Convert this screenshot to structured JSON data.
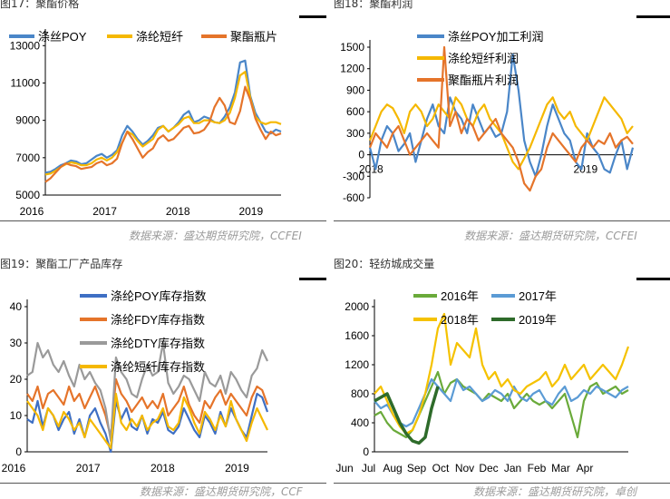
{
  "panels": [
    {
      "title": "图17：聚酯价格",
      "source": "数据来源：盛达期货研究院，CCFEI",
      "chart_data": {
        "type": "line",
        "x_ticks": [
          "2016",
          "2017",
          "2018",
          "2019"
        ],
        "y_ticks": [
          "5000",
          "7000",
          "9000",
          "11000",
          "13000"
        ],
        "ylim": [
          5000,
          13500
        ],
        "legend_position": "top",
        "series": [
          {
            "name": "涤丝POY",
            "color": "#4a86c8",
            "values": [
              6200,
              6250,
              6400,
              6600,
              6700,
              6850,
              6800,
              6650,
              6700,
              6900,
              7100,
              7200,
              7000,
              7150,
              7400,
              8200,
              8700,
              8400,
              8000,
              7700,
              7900,
              8200,
              8600,
              8700,
              8400,
              8600,
              8900,
              9300,
              9500,
              8900,
              9000,
              9200,
              9100,
              8900,
              8850,
              9200,
              9700,
              10500,
              12100,
              12200,
              10300,
              9400,
              8900,
              8400,
              8300,
              8500,
              8400
            ]
          },
          {
            "name": "涤纶短纤",
            "color": "#f5b800",
            "values": [
              6100,
              6150,
              6300,
              6500,
              6650,
              6750,
              6700,
              6600,
              6600,
              6700,
              6900,
              7000,
              6850,
              7000,
              7300,
              7800,
              8400,
              8250,
              7900,
              7600,
              7800,
              8000,
              8500,
              8700,
              8400,
              8600,
              8800,
              9100,
              9200,
              8850,
              8850,
              9000,
              9000,
              8900,
              8850,
              9000,
              9400,
              10200,
              11400,
              11600,
              10200,
              9200,
              8900,
              8800,
              8900,
              8900,
              8800
            ]
          },
          {
            "name": "聚酯瓶片",
            "color": "#e5742a",
            "values": [
              5700,
              5900,
              6200,
              6500,
              6700,
              6600,
              6550,
              6400,
              6450,
              6500,
              6700,
              6800,
              6600,
              6700,
              6950,
              7800,
              8400,
              8000,
              7500,
              7000,
              7300,
              7500,
              8000,
              8200,
              7900,
              8000,
              8300,
              8600,
              8700,
              8300,
              8350,
              8500,
              8900,
              9700,
              10200,
              9800,
              8900,
              8800,
              9500,
              10800,
              10100,
              9100,
              8500,
              8000,
              8400,
              8200,
              8300
            ]
          }
        ]
      }
    },
    {
      "title": "图18：聚酯利润",
      "source": "数据来源：盛达期货研究院，CCFEI",
      "chart_data": {
        "type": "line",
        "x_ticks": [
          "2018",
          "2019"
        ],
        "y_ticks": [
          "-600",
          "-300",
          "0",
          "300",
          "600",
          "900",
          "1200",
          "1500"
        ],
        "ylim": [
          -600,
          1500
        ],
        "legend_position": "top",
        "series": [
          {
            "name": "涤丝POY加工利润",
            "color": "#4a86c8",
            "values": [
              100,
              -200,
              200,
              400,
              300,
              50,
              150,
              300,
              -100,
              200,
              500,
              700,
              400,
              300,
              800,
              600,
              500,
              300,
              700,
              500,
              300,
              400,
              250,
              300,
              600,
              1400,
              900,
              200,
              -100,
              -300,
              0,
              400,
              700,
              500,
              300,
              200,
              -100,
              -200,
              300,
              100,
              0,
              -200,
              -250,
              0,
              200,
              -200,
              100
            ]
          },
          {
            "name": "涤纶短纤利润",
            "color": "#f5b800",
            "values": [
              200,
              400,
              600,
              700,
              650,
              500,
              300,
              600,
              700,
              600,
              400,
              500,
              700,
              600,
              500,
              800,
              700,
              500,
              400,
              600,
              700,
              500,
              400,
              300,
              100,
              -100,
              -200,
              -50,
              100,
              300,
              500,
              700,
              800,
              600,
              500,
              600,
              400,
              300,
              200,
              400,
              600,
              800,
              700,
              600,
              500,
              300,
              400
            ]
          },
          {
            "name": "聚酯瓶片利润",
            "color": "#e5742a",
            "values": [
              100,
              300,
              200,
              100,
              300,
              400,
              200,
              0,
              100,
              200,
              300,
              200,
              100,
              1500,
              400,
              600,
              300,
              500,
              400,
              200,
              300,
              400,
              500,
              300,
              200,
              100,
              -100,
              -400,
              -500,
              -300,
              -200,
              100,
              300,
              200,
              100,
              0,
              -100,
              100,
              200,
              100,
              200,
              150,
              300,
              100,
              200,
              250,
              150
            ]
          }
        ]
      }
    },
    {
      "title": "图19：聚酯工厂产品库存",
      "source": "数据来源：盛达期货研究院，CCF",
      "chart_data": {
        "type": "line",
        "x_ticks": [
          "2016",
          "2017",
          "2018",
          "2019"
        ],
        "y_ticks": [
          "0",
          "10",
          "20",
          "30",
          "40"
        ],
        "ylim": [
          0,
          40
        ],
        "legend_position": "top",
        "series": [
          {
            "name": "涤纶POY库存指数",
            "color": "#3e6fc4",
            "values": [
              9,
              8,
              14,
              7,
              12,
              10,
              6,
              9,
              11,
              5,
              9,
              4,
              10,
              12,
              8,
              5,
              0,
              14,
              9,
              12,
              7,
              6,
              10,
              5,
              9,
              8,
              11,
              6,
              5,
              7,
              12,
              9,
              6,
              4,
              10,
              8,
              5,
              11,
              7,
              12,
              9,
              6,
              4,
              10,
              16,
              15,
              11
            ]
          },
          {
            "name": "涤纶FDY库存指数",
            "color": "#e5742a",
            "values": [
              16,
              14,
              18,
              12,
              16,
              17,
              15,
              13,
              18,
              14,
              16,
              12,
              15,
              18,
              14,
              10,
              4,
              20,
              16,
              14,
              11,
              13,
              15,
              12,
              14,
              12,
              16,
              10,
              12,
              14,
              18,
              13,
              10,
              8,
              14,
              12,
              15,
              17,
              13,
              16,
              14,
              12,
              10,
              15,
              18,
              17,
              13
            ]
          },
          {
            "name": "涤纶DTY库存指数",
            "color": "#9a9a9a",
            "values": [
              21,
              22,
              30,
              26,
              28,
              24,
              22,
              25,
              21,
              18,
              24,
              20,
              22,
              19,
              17,
              12,
              3,
              26,
              22,
              20,
              16,
              15,
              20,
              24,
              21,
              22,
              30,
              19,
              16,
              18,
              21,
              20,
              17,
              14,
              22,
              19,
              18,
              21,
              16,
              22,
              20,
              17,
              15,
              21,
              23,
              28,
              25
            ]
          },
          {
            "name": "涤纶短纤库存指数",
            "color": "#f5b800",
            "values": [
              14,
              12,
              10,
              6,
              12,
              10,
              7,
              11,
              9,
              6,
              8,
              4,
              9,
              7,
              5,
              3,
              1,
              16,
              8,
              6,
              9,
              7,
              10,
              6,
              8,
              9,
              12,
              7,
              6,
              8,
              15,
              12,
              8,
              5,
              11,
              9,
              6,
              10,
              7,
              14,
              9,
              6,
              3,
              8,
              12,
              9,
              6
            ]
          }
        ]
      }
    },
    {
      "title": "图20：轻纺城成交量",
      "source": "数据来源：盛达期货研究院，卓创",
      "chart_data": {
        "type": "line",
        "x_ticks": [
          "Jun",
          "Jul",
          "Aug",
          "Sep",
          "Oct",
          "Nov",
          "Dec",
          "Jan",
          "Feb",
          "Mar",
          "Apr"
        ],
        "y_ticks": [
          "0",
          "400",
          "800",
          "1200",
          "1600",
          "2000"
        ],
        "ylim": [
          0,
          2000
        ],
        "legend_position": "top",
        "series": [
          {
            "name": "2016年",
            "color": "#6aaa3a",
            "values": [
              500,
              550,
              400,
              300,
              250,
              200,
              300,
              500,
              700,
              900,
              1100,
              800,
              950,
              1000,
              900,
              850,
              800,
              700,
              800,
              750,
              700,
              800,
              600,
              700,
              800,
              700,
              650,
              700,
              600,
              700,
              800,
              500,
              200,
              700,
              900,
              950,
              800,
              850,
              900,
              800,
              850
            ]
          },
          {
            "name": "2017年",
            "color": "#5b9bd5",
            "values": [
              700,
              600,
              650,
              500,
              400,
              350,
              400,
              600,
              800,
              1000,
              900,
              800,
              700,
              1000,
              850,
              900,
              800,
              700,
              750,
              850,
              800,
              700,
              900,
              750,
              700,
              800,
              850,
              700,
              650,
              800,
              900,
              700,
              750,
              850,
              800,
              900,
              850,
              800,
              750,
              850,
              900
            ]
          },
          {
            "name": "2018年",
            "color": "#f5c200",
            "values": [
              800,
              900,
              700,
              500,
              350,
              250,
              300,
              500,
              800,
              1200,
              1700,
              1900,
              1200,
              1500,
              1400,
              1300,
              1700,
              1200,
              1000,
              1100,
              900,
              1000,
              850,
              800,
              900,
              950,
              1000,
              1100,
              900,
              1000,
              1200,
              1000,
              1100,
              1200,
              1000,
              1100,
              1200,
              1100,
              1000,
              1200,
              1450
            ]
          },
          {
            "name": "2019年",
            "color": "#2e6b2a",
            "values": [
              700,
              750,
              800,
              600,
              400,
              250,
              150,
              120,
              200,
              600,
              900
            ]
          }
        ]
      }
    }
  ]
}
